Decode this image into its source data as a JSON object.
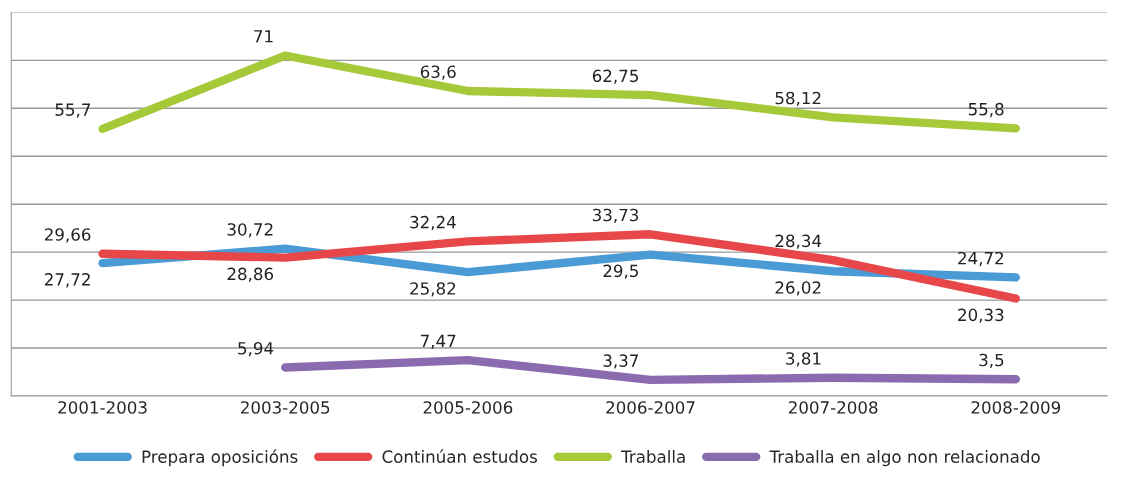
{
  "chart_data": {
    "type": "line",
    "categories": [
      "2001-2003",
      "2003-2005",
      "2005-2006",
      "2006-2007",
      "2007-2008",
      "2008-2009"
    ],
    "series": [
      {
        "name": "Prepara oposicións",
        "color": "#4a9bd5",
        "values": [
          27.72,
          30.72,
          25.82,
          29.5,
          26.02,
          24.72
        ],
        "value_labels": [
          "27,72",
          "30,72",
          "25,82",
          "29,5",
          "26,02",
          "24,72"
        ]
      },
      {
        "name": "Continúan estudos",
        "color": "#e8474a",
        "values": [
          29.66,
          28.86,
          32.24,
          33.73,
          28.34,
          20.33
        ],
        "value_labels": [
          "29,66",
          "28,86",
          "32,24",
          "33,73",
          "28,34",
          "20,33"
        ]
      },
      {
        "name": "Traballa",
        "color": "#a6c93a",
        "values": [
          55.7,
          71,
          63.6,
          62.75,
          58.12,
          55.8
        ],
        "value_labels": [
          "55,7",
          "71",
          "63,6",
          "62,75",
          "58,12",
          "55,8"
        ]
      },
      {
        "name": "Traballa en algo non relacionado",
        "color": "#8a6bb0",
        "values": [
          null,
          5.94,
          7.47,
          3.37,
          3.81,
          3.5
        ],
        "value_labels": [
          null,
          "5,94",
          "7,47",
          "3,37",
          "3,81",
          "3,5"
        ]
      }
    ],
    "ylim": [
      0,
      80
    ],
    "yticks": [
      {
        "value": 0,
        "label": null
      },
      {
        "value": 10,
        "label": null
      },
      {
        "value": 20,
        "label": null
      },
      {
        "value": 30,
        "label": null
      },
      {
        "value": 40,
        "label": null
      },
      {
        "value": 50,
        "label": null
      },
      {
        "value": 60,
        "label": null
      },
      {
        "value": 70,
        "label": null
      },
      {
        "value": 80,
        "label": null
      }
    ],
    "tick_labels": "x",
    "grid": "y",
    "legend": "bottom",
    "marker": "none",
    "line_style": "solid"
  }
}
